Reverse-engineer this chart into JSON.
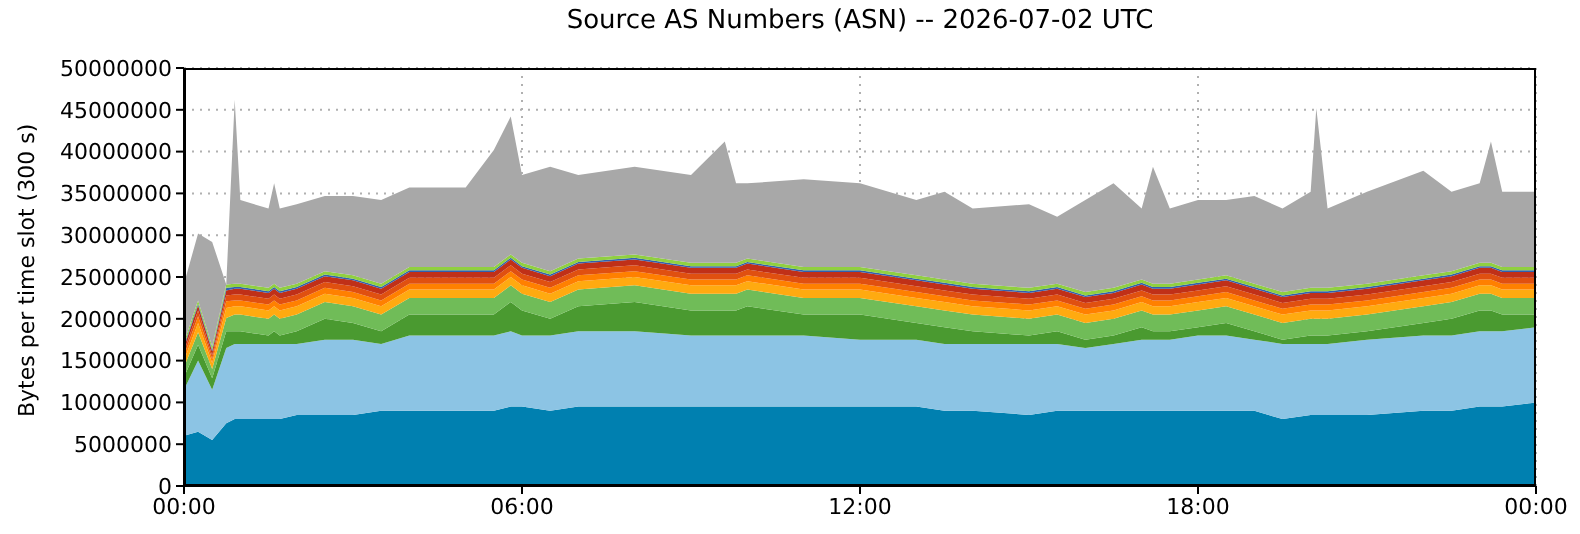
{
  "chart_data": {
    "type": "area",
    "stacked": true,
    "title": "Source AS Numbers (ASN) -- 2026-07-02 UTC",
    "ylabel": "Bytes per time slot (300 s)",
    "x": [
      0,
      0.25,
      0.5,
      0.75,
      0.9,
      1,
      1.5,
      1.6,
      1.7,
      2,
      2.5,
      3,
      3.5,
      4,
      5,
      5.5,
      5.8,
      6,
      6.5,
      7,
      8,
      9,
      9.6,
      9.8,
      10,
      11,
      12,
      13,
      13.5,
      14,
      15,
      15.5,
      16,
      16.5,
      17,
      17.2,
      17.5,
      18,
      18.5,
      19,
      19.5,
      20,
      20.1,
      20.3,
      21,
      22,
      22.5,
      23,
      23.2,
      23.4,
      24
    ],
    "xlim": [
      0,
      24
    ],
    "xticks": [
      {
        "value": 0,
        "label": "00:00"
      },
      {
        "value": 6,
        "label": "06:00"
      },
      {
        "value": 12,
        "label": "12:00"
      },
      {
        "value": 18,
        "label": "18:00"
      },
      {
        "value": 24,
        "label": "00:00"
      }
    ],
    "ylim": [
      0,
      50000000
    ],
    "yticks": [
      0,
      5000000,
      10000000,
      15000000,
      20000000,
      25000000,
      30000000,
      35000000,
      40000000,
      45000000,
      50000000
    ],
    "grid": true,
    "legend": false,
    "series": [
      {
        "color": "#0080b0",
        "values": [
          6000000,
          6500000,
          5500000,
          7500000,
          8000000,
          8000000,
          8000000,
          8000000,
          8000000,
          8500000,
          8500000,
          8500000,
          9000000,
          9000000,
          9000000,
          9000000,
          9500000,
          9500000,
          9000000,
          9500000,
          9500000,
          9500000,
          9500000,
          9500000,
          9500000,
          9500000,
          9500000,
          9500000,
          9000000,
          9000000,
          8500000,
          9000000,
          9000000,
          9000000,
          9000000,
          9000000,
          9000000,
          9000000,
          9000000,
          9000000,
          8000000,
          8500000,
          8500000,
          8500000,
          8500000,
          9000000,
          9000000,
          9500000,
          9500000,
          9500000,
          10000000
        ]
      },
      {
        "color": "#8cc4e4",
        "values": [
          5500000,
          8500000,
          6000000,
          9000000,
          9000000,
          9000000,
          9000000,
          9000000,
          9000000,
          8500000,
          9000000,
          9000000,
          8000000,
          9000000,
          9000000,
          9000000,
          9000000,
          8500000,
          9000000,
          9000000,
          9000000,
          8500000,
          8500000,
          8500000,
          8500000,
          8500000,
          8000000,
          8000000,
          8000000,
          8000000,
          8500000,
          8000000,
          7500000,
          8000000,
          8500000,
          8500000,
          8500000,
          9000000,
          9000000,
          8500000,
          9000000,
          8500000,
          8500000,
          8500000,
          9000000,
          9000000,
          9000000,
          9000000,
          9000000,
          9000000,
          9000000
        ]
      },
      {
        "color": "#4a9a30",
        "values": [
          1500000,
          1900000,
          1400000,
          2000000,
          1500000,
          1500000,
          1000000,
          1500000,
          1000000,
          1500000,
          2500000,
          2000000,
          1500000,
          2500000,
          2500000,
          2500000,
          3500000,
          3000000,
          2000000,
          3000000,
          3500000,
          3000000,
          3000000,
          3000000,
          3500000,
          2500000,
          3000000,
          2000000,
          2000000,
          1500000,
          1000000,
          1500000,
          1000000,
          1000000,
          1500000,
          1000000,
          1000000,
          1000000,
          1500000,
          1000000,
          500000,
          1000000,
          1000000,
          1000000,
          1000000,
          1500000,
          2000000,
          2500000,
          2500000,
          2000000,
          1500000
        ]
      },
      {
        "color": "#70bc58",
        "values": [
          1200000,
          1500000,
          1100000,
          1600000,
          2000000,
          2000000,
          2000000,
          2000000,
          2000000,
          2000000,
          2000000,
          2000000,
          2000000,
          2000000,
          2000000,
          2000000,
          2000000,
          2000000,
          2000000,
          2000000,
          2000000,
          2000000,
          2000000,
          2000000,
          2000000,
          2000000,
          2000000,
          2000000,
          2000000,
          2000000,
          2000000,
          2000000,
          2000000,
          2000000,
          2000000,
          2000000,
          2000000,
          2000000,
          2000000,
          2000000,
          2000000,
          2000000,
          2000000,
          2000000,
          2000000,
          2000000,
          2000000,
          2000000,
          2000000,
          2000000,
          2000000
        ]
      },
      {
        "color": "#ffaa10",
        "values": [
          800000,
          1100000,
          700000,
          1200000,
          1000000,
          1000000,
          1000000,
          1000000,
          1000000,
          1000000,
          1000000,
          1000000,
          1000000,
          1000000,
          1000000,
          1000000,
          1000000,
          1000000,
          1000000,
          1000000,
          1000000,
          1000000,
          1000000,
          1000000,
          1000000,
          1000000,
          1000000,
          1000000,
          1000000,
          1000000,
          1000000,
          1000000,
          1000000,
          1000000,
          1000000,
          1000000,
          1000000,
          1000000,
          1000000,
          1000000,
          1000000,
          1000000,
          1000000,
          1000000,
          1000000,
          1000000,
          1000000,
          1000000,
          1000000,
          1000000,
          1000000
        ]
      },
      {
        "color": "#ff8000",
        "values": [
          600000,
          800000,
          500000,
          800000,
          700000,
          700000,
          700000,
          700000,
          700000,
          700000,
          700000,
          700000,
          700000,
          700000,
          700000,
          700000,
          700000,
          700000,
          700000,
          700000,
          700000,
          700000,
          700000,
          700000,
          700000,
          700000,
          700000,
          700000,
          700000,
          700000,
          700000,
          700000,
          700000,
          700000,
          700000,
          700000,
          700000,
          700000,
          700000,
          700000,
          700000,
          700000,
          700000,
          700000,
          700000,
          700000,
          700000,
          700000,
          700000,
          700000,
          700000
        ]
      },
      {
        "color": "#e05010",
        "values": [
          500000,
          700000,
          400000,
          700000,
          700000,
          700000,
          700000,
          700000,
          700000,
          700000,
          700000,
          700000,
          700000,
          700000,
          700000,
          700000,
          700000,
          700000,
          700000,
          700000,
          700000,
          700000,
          700000,
          700000,
          700000,
          700000,
          700000,
          700000,
          700000,
          700000,
          700000,
          700000,
          700000,
          700000,
          700000,
          700000,
          700000,
          700000,
          700000,
          700000,
          700000,
          700000,
          700000,
          700000,
          700000,
          700000,
          700000,
          700000,
          700000,
          700000,
          700000
        ]
      },
      {
        "color": "#c03018",
        "values": [
          500000,
          600000,
          500000,
          600000,
          700000,
          700000,
          700000,
          700000,
          700000,
          700000,
          700000,
          700000,
          700000,
          700000,
          700000,
          700000,
          700000,
          700000,
          700000,
          700000,
          700000,
          700000,
          700000,
          700000,
          700000,
          700000,
          700000,
          700000,
          700000,
          700000,
          700000,
          700000,
          700000,
          700000,
          700000,
          700000,
          700000,
          700000,
          700000,
          700000,
          700000,
          700000,
          700000,
          700000,
          700000,
          700000,
          700000,
          700000,
          700000,
          700000,
          700000
        ]
      },
      {
        "color": "#3060b0",
        "values": [
          200000,
          200000,
          200000,
          300000,
          200000,
          200000,
          200000,
          200000,
          200000,
          200000,
          200000,
          200000,
          200000,
          200000,
          200000,
          200000,
          200000,
          200000,
          200000,
          200000,
          200000,
          200000,
          200000,
          200000,
          200000,
          200000,
          200000,
          200000,
          200000,
          200000,
          200000,
          200000,
          200000,
          200000,
          200000,
          200000,
          200000,
          200000,
          200000,
          200000,
          200000,
          200000,
          200000,
          200000,
          200000,
          200000,
          200000,
          200000,
          200000,
          200000,
          200000
        ]
      },
      {
        "color": "#90d040",
        "values": [
          400000,
          400000,
          400000,
          400000,
          400000,
          400000,
          400000,
          400000,
          400000,
          400000,
          400000,
          400000,
          400000,
          400000,
          400000,
          400000,
          400000,
          400000,
          400000,
          400000,
          400000,
          400000,
          400000,
          400000,
          400000,
          400000,
          400000,
          400000,
          400000,
          400000,
          400000,
          400000,
          400000,
          400000,
          400000,
          400000,
          400000,
          400000,
          400000,
          400000,
          400000,
          400000,
          400000,
          400000,
          400000,
          400000,
          400000,
          400000,
          400000,
          400000,
          400000
        ]
      },
      {
        "color": "#a8a8a8",
        "values": [
          7000000,
          8000000,
          12500000,
          0,
          22000000,
          10000000,
          9500000,
          12000000,
          9500000,
          9500000,
          9000000,
          9500000,
          10000000,
          9500000,
          9500000,
          14000000,
          16500000,
          10500000,
          12500000,
          10000000,
          10500000,
          10500000,
          14500000,
          9500000,
          9000000,
          10500000,
          10000000,
          9000000,
          10500000,
          9000000,
          10000000,
          8000000,
          11000000,
          12500000,
          8500000,
          14000000,
          9000000,
          9500000,
          9000000,
          10500000,
          10000000,
          11500000,
          21500000,
          9500000,
          11000000,
          12500000,
          9500000,
          9500000,
          14500000,
          9000000,
          9000000
        ]
      }
    ]
  }
}
